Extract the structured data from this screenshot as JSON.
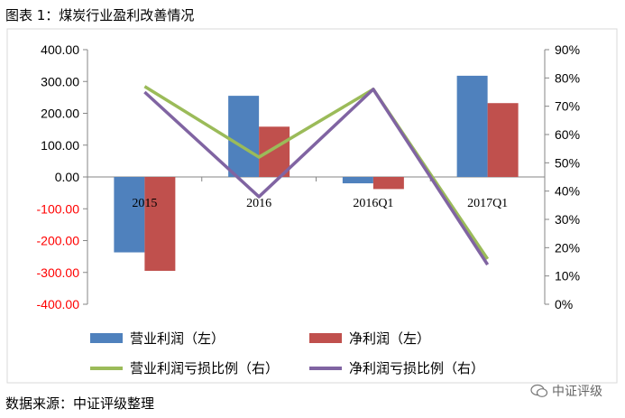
{
  "title": "图表 1：煤炭行业盈利改善情况",
  "source": "数据来源：中证评级整理",
  "watermark": "中证评级",
  "chart_data": {
    "type": "bar+line",
    "categories": [
      "2015",
      "2016",
      "2016Q1",
      "2017Q1"
    ],
    "series": [
      {
        "name": "营业利润（左）",
        "kind": "bar",
        "axis": "left",
        "color": "#4f81bd",
        "values": [
          -237,
          255,
          -20,
          318
        ]
      },
      {
        "name": "净利润（左）",
        "kind": "bar",
        "axis": "left",
        "color": "#c0504d",
        "values": [
          -295,
          158,
          -38,
          232
        ]
      },
      {
        "name": "营业利润亏损比例（右）",
        "kind": "line",
        "axis": "right",
        "color": "#9bbb59",
        "values": [
          0.77,
          0.52,
          0.76,
          0.16
        ]
      },
      {
        "name": "净利润亏损比例（右）",
        "kind": "line",
        "axis": "right",
        "color": "#8064a2",
        "values": [
          0.75,
          0.38,
          0.76,
          0.14
        ]
      }
    ],
    "left_axis": {
      "min": -400,
      "max": 400,
      "step": 100,
      "tick_labels": [
        "400.00",
        "300.00",
        "200.00",
        "100.00",
        "0.00",
        "-100.00",
        "-200.00",
        "-300.00",
        "-400.00"
      ]
    },
    "right_axis": {
      "min": 0,
      "max": 0.9,
      "step": 0.1,
      "tick_labels": [
        "90%",
        "80%",
        "70%",
        "60%",
        "50%",
        "40%",
        "30%",
        "20%",
        "10%",
        "0%"
      ]
    },
    "negative_tick_color": "#ff0000",
    "grid": false,
    "legend_position": "bottom"
  }
}
